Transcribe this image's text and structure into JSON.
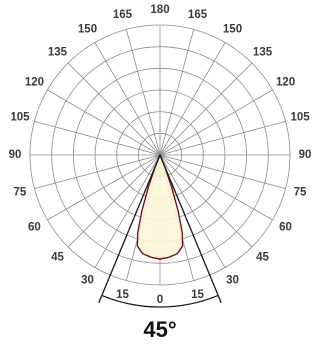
{
  "chart_data": {
    "type": "polar",
    "angle_labels": {
      "bottom_center": "0",
      "top_center": "180",
      "sides": [
        "15",
        "30",
        "45",
        "60",
        "75",
        "90",
        "105",
        "120",
        "135",
        "150",
        "165"
      ]
    },
    "angle_range_deg": [
      0,
      180
    ],
    "angle_step_deg": 15,
    "radial_rings": 6,
    "grid": true,
    "series": [
      {
        "points": [
          {
            "angle": 0,
            "r": 0.8
          },
          {
            "angle": 5,
            "r": 0.79
          },
          {
            "angle": 10,
            "r": 0.77
          },
          {
            "angle": 14,
            "r": 0.72
          },
          {
            "angle": 16,
            "r": 0.62
          },
          {
            "angle": 18,
            "r": 0.45
          },
          {
            "angle": 20,
            "r": 0.26
          },
          {
            "angle": 22,
            "r": 0.1
          },
          {
            "angle": 23,
            "r": 0.0
          }
        ],
        "fill_color": "#fdf7d8",
        "stroke_color": "#7a1020"
      }
    ],
    "beam_angle_deg": 45,
    "beam_label": "45°"
  }
}
